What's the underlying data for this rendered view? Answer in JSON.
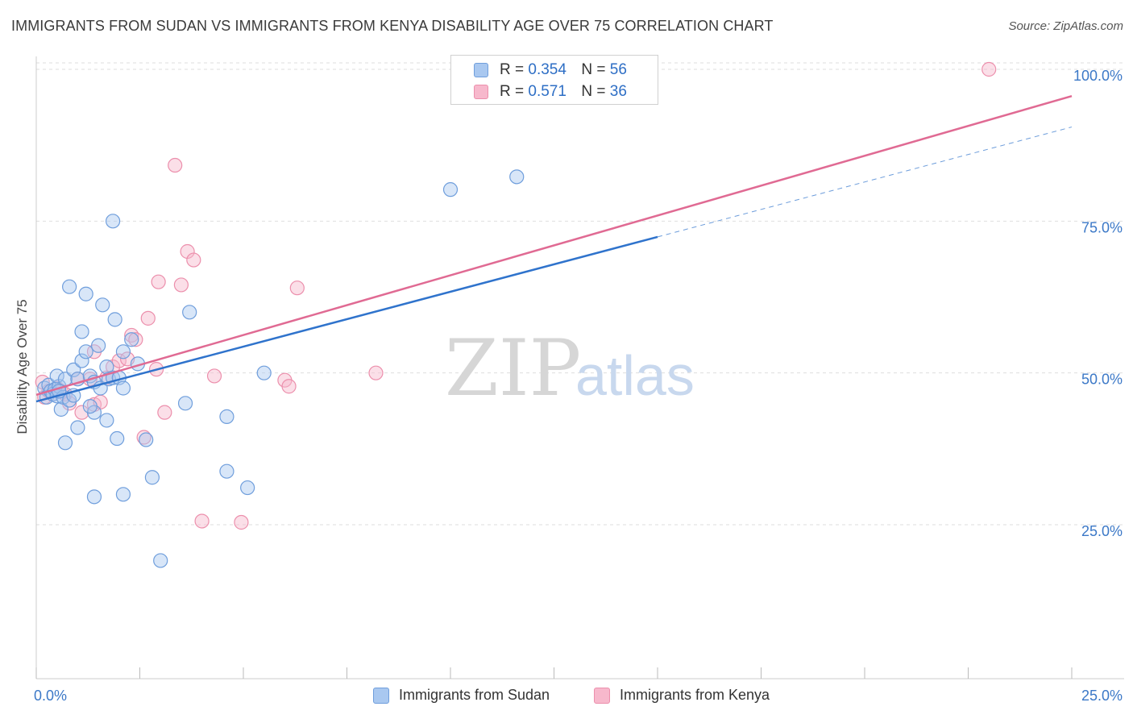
{
  "title": "IMMIGRANTS FROM SUDAN VS IMMIGRANTS FROM KENYA DISABILITY AGE OVER 75 CORRELATION CHART",
  "source": "Source: ZipAtlas.com",
  "watermark": {
    "zip": "ZIP",
    "atlas": "atlas"
  },
  "legend": {
    "sudan": {
      "r_label": "R =",
      "r_value": "0.354",
      "n_label": "N =",
      "n_value": "56"
    },
    "kenya": {
      "r_label": "R =",
      "r_value": "0.571",
      "n_label": "N =",
      "n_value": "36"
    }
  },
  "bottom_legend": {
    "sudan": "Immigrants from Sudan",
    "kenya": "Immigrants from Kenya"
  },
  "colors": {
    "sudan_fill": "#a9c8f0",
    "sudan_stroke": "#6f9edc",
    "sudan_line": "#2f73cc",
    "kenya_fill": "#f7b8cc",
    "kenya_stroke": "#ec8fac",
    "kenya_line": "#e06a93",
    "axis_text": "#3b78c7",
    "grid": "#dedede"
  },
  "chart_data": {
    "type": "scatter",
    "title": "IMMIGRANTS FROM SUDAN VS IMMIGRANTS FROM KENYA DISABILITY AGE OVER 75 CORRELATION CHART",
    "xlabel": "",
    "ylabel": "Disability Age Over 75",
    "xlim": [
      0,
      25
    ],
    "ylim": [
      0,
      105
    ],
    "x_tick_labels": [
      "0.0%",
      "25.0%"
    ],
    "y_ticks": [
      {
        "value": 25,
        "label": "25.0%"
      },
      {
        "value": 50,
        "label": "50.0%"
      },
      {
        "value": 75,
        "label": "75.0%"
      },
      {
        "value": 100,
        "label": "100.0%"
      }
    ],
    "grid": true,
    "series": [
      {
        "name": "Immigrants from Sudan",
        "R": 0.354,
        "N": 56,
        "trend": {
          "x0": 0,
          "y0": 45.3,
          "x1": 15,
          "y1": 72.4,
          "dashed_to_x": 25,
          "dashed_to_y": 90.5
        },
        "points": [
          [
            0.2,
            47.5
          ],
          [
            0.25,
            46
          ],
          [
            0.3,
            48
          ],
          [
            0.35,
            47
          ],
          [
            0.4,
            46.5
          ],
          [
            0.45,
            47.3
          ],
          [
            0.5,
            46.2
          ],
          [
            0.55,
            47.8
          ],
          [
            0.6,
            44
          ],
          [
            0.5,
            49.5
          ],
          [
            0.7,
            49
          ],
          [
            0.65,
            46
          ],
          [
            0.8,
            45.5
          ],
          [
            0.9,
            50.5
          ],
          [
            1.0,
            49
          ],
          [
            1.1,
            52
          ],
          [
            1.2,
            53.5
          ],
          [
            1.3,
            49.5
          ],
          [
            1.4,
            48.5
          ],
          [
            1.5,
            54.5
          ],
          [
            1.55,
            47.5
          ],
          [
            1.7,
            51
          ],
          [
            1.75,
            49
          ],
          [
            1.85,
            49.2
          ],
          [
            2.0,
            49.2
          ],
          [
            2.1,
            53.5
          ],
          [
            2.1,
            47.5
          ],
          [
            2.3,
            55.5
          ],
          [
            0.8,
            64.2
          ],
          [
            1.1,
            56.8
          ],
          [
            1.6,
            61.2
          ],
          [
            1.2,
            63
          ],
          [
            1.9,
            58.8
          ],
          [
            1.85,
            75
          ],
          [
            2.45,
            51.5
          ],
          [
            3.7,
            60
          ],
          [
            3.6,
            45
          ],
          [
            1.4,
            43.5
          ],
          [
            1.7,
            42.2
          ],
          [
            1.0,
            41
          ],
          [
            0.7,
            38.5
          ],
          [
            1.95,
            39.2
          ],
          [
            2.65,
            39
          ],
          [
            4.6,
            42.8
          ],
          [
            5.5,
            50
          ],
          [
            2.8,
            32.8
          ],
          [
            4.6,
            33.8
          ],
          [
            5.1,
            31.1
          ],
          [
            1.4,
            29.6
          ],
          [
            2.1,
            30
          ],
          [
            3.0,
            19.1
          ],
          [
            10.0,
            80.2
          ],
          [
            11.6,
            82.3
          ],
          [
            0.55,
            47
          ],
          [
            1.3,
            44.5
          ],
          [
            0.9,
            46.3
          ]
        ]
      },
      {
        "name": "Immigrants from Kenya",
        "R": 0.571,
        "N": 36,
        "trend": {
          "x0": 0,
          "y0": 46.4,
          "x1": 25,
          "y1": 95.6
        },
        "points": [
          [
            0.15,
            48.5
          ],
          [
            0.2,
            46
          ],
          [
            0.3,
            47
          ],
          [
            0.4,
            46.5
          ],
          [
            0.5,
            47.5
          ],
          [
            0.6,
            47
          ],
          [
            0.7,
            46.5
          ],
          [
            0.8,
            45
          ],
          [
            1.0,
            49
          ],
          [
            1.1,
            43.5
          ],
          [
            1.3,
            49
          ],
          [
            1.4,
            53.5
          ],
          [
            1.4,
            44.8
          ],
          [
            1.55,
            45.2
          ],
          [
            1.7,
            49.2
          ],
          [
            1.85,
            51
          ],
          [
            2.0,
            52
          ],
          [
            2.2,
            52.3
          ],
          [
            2.3,
            56.2
          ],
          [
            2.4,
            55.5
          ],
          [
            2.7,
            59
          ],
          [
            2.9,
            50.6
          ],
          [
            2.95,
            65
          ],
          [
            3.1,
            43.5
          ],
          [
            3.35,
            84.2
          ],
          [
            3.5,
            64.5
          ],
          [
            3.65,
            70
          ],
          [
            3.8,
            68.6
          ],
          [
            4.3,
            49.5
          ],
          [
            6.0,
            48.8
          ],
          [
            6.1,
            47.8
          ],
          [
            6.3,
            64
          ],
          [
            8.2,
            50
          ],
          [
            2.6,
            39.4
          ],
          [
            4.0,
            25.6
          ],
          [
            4.95,
            25.4
          ],
          [
            23.0,
            100
          ]
        ]
      }
    ]
  }
}
